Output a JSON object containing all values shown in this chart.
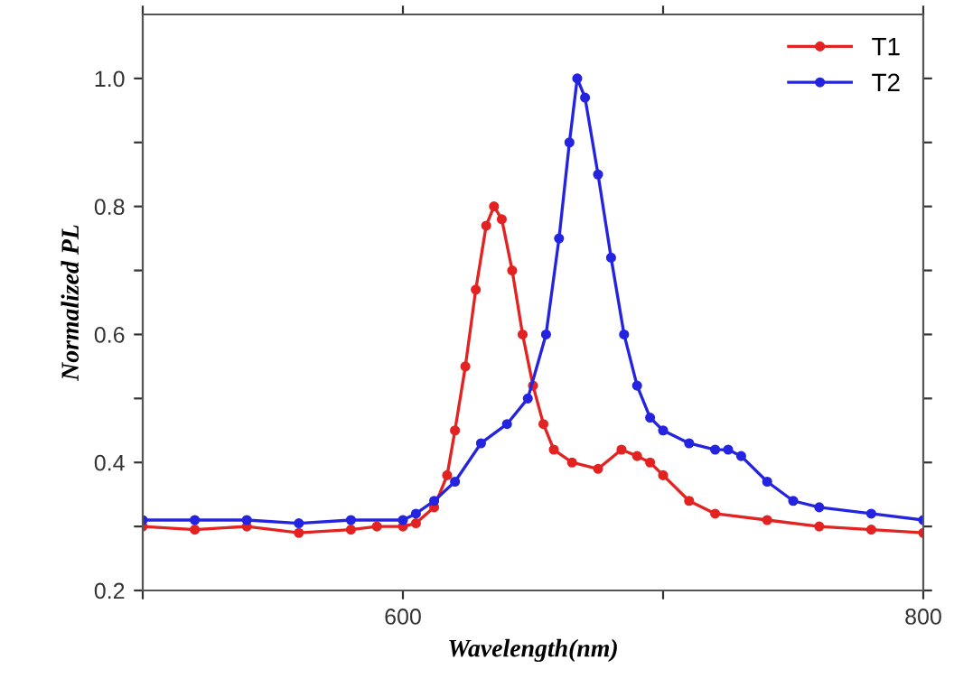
{
  "chart_data": {
    "type": "line",
    "xlabel": "Wavelength(nm)",
    "ylabel": "Normalized PL",
    "xlim": [
      500,
      800
    ],
    "xticks": [
      {
        "value": 500,
        "label": null
      },
      600,
      {
        "value": 700,
        "label": null
      },
      800
    ],
    "ylim": [
      0.2,
      1.1
    ],
    "yticks": [
      0.2,
      {
        "value": 0.3,
        "label": null
      },
      0.4,
      {
        "value": 0.5,
        "label": null
      },
      0.6,
      {
        "value": 0.7,
        "label": null
      },
      0.8,
      {
        "value": 0.9,
        "label": null
      },
      {
        "value": 1.0,
        "label": "1.0"
      }
    ],
    "grid": false,
    "legend": "top right",
    "marker": "circle",
    "line_style": "solid",
    "series": [
      {
        "name": "T1",
        "color": "#e32222",
        "x": [
          500,
          520,
          540,
          560,
          580,
          590,
          600,
          605,
          612,
          617,
          620,
          624,
          628,
          632,
          635,
          638,
          642,
          646,
          650,
          654,
          658,
          665,
          675,
          684,
          690,
          695,
          700,
          710,
          720,
          740,
          760,
          780,
          800
        ],
        "values": [
          0.3,
          0.295,
          0.3,
          0.29,
          0.295,
          0.3,
          0.3,
          0.305,
          0.33,
          0.38,
          0.45,
          0.55,
          0.67,
          0.77,
          0.8,
          0.78,
          0.7,
          0.6,
          0.52,
          0.46,
          0.42,
          0.4,
          0.39,
          0.42,
          0.41,
          0.4,
          0.38,
          0.34,
          0.32,
          0.31,
          0.3,
          0.295,
          0.29
        ]
      },
      {
        "name": "T2",
        "color": "#2424e0",
        "x": [
          500,
          520,
          540,
          560,
          580,
          600,
          605,
          612,
          620,
          630,
          640,
          648,
          655,
          660,
          664,
          667,
          670,
          675,
          680,
          685,
          690,
          695,
          700,
          710,
          720,
          725,
          730,
          740,
          750,
          760,
          780,
          800
        ],
        "values": [
          0.31,
          0.31,
          0.31,
          0.305,
          0.31,
          0.31,
          0.32,
          0.34,
          0.37,
          0.43,
          0.46,
          0.5,
          0.6,
          0.75,
          0.9,
          1.0,
          0.97,
          0.85,
          0.72,
          0.6,
          0.52,
          0.47,
          0.45,
          0.43,
          0.42,
          0.42,
          0.41,
          0.37,
          0.34,
          0.33,
          0.32,
          0.31
        ]
      }
    ]
  }
}
